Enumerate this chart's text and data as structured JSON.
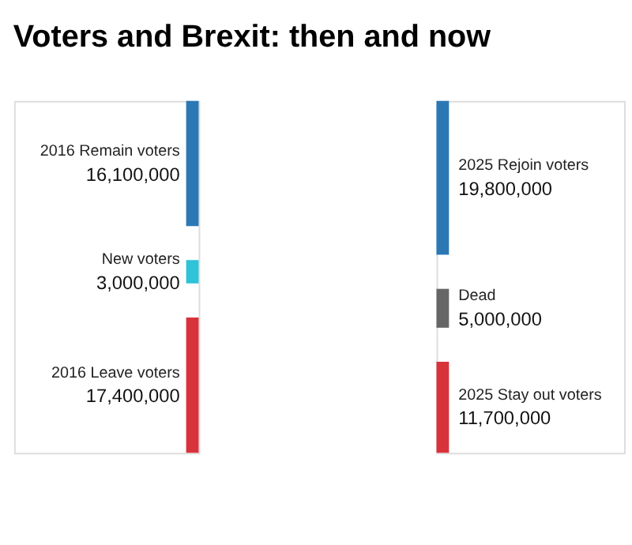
{
  "chart_data": [
    {
      "type": "other",
      "title": "Voters and Brexit: then and now",
      "categories": [
        "2016 Remain voters",
        "New voters",
        "2016 Leave voters"
      ],
      "values": [
        16100000,
        3000000,
        17400000
      ],
      "value_labels": [
        "16,100,000",
        "3,000,000",
        "17,400,000"
      ],
      "colors": [
        "#2b78b5",
        "#2ec3d6",
        "#d8323b"
      ]
    },
    {
      "type": "other",
      "categories": [
        "2025 Rejoin voters",
        "Dead",
        "2025 Stay out voters"
      ],
      "values": [
        19800000,
        5000000,
        11700000
      ],
      "value_labels": [
        "19,800,000",
        "5,000,000",
        "11,700,000"
      ],
      "colors": [
        "#2b78b5",
        "#666666",
        "#d8323b"
      ]
    }
  ]
}
